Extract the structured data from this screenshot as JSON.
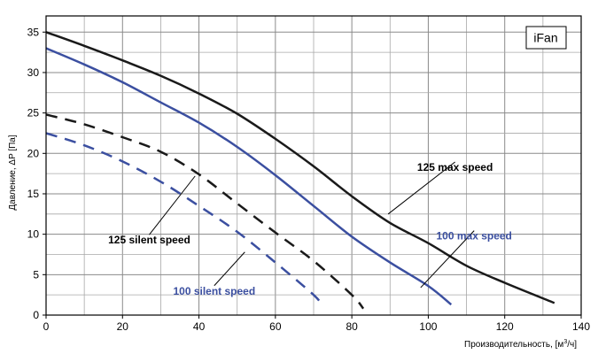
{
  "chart_data": {
    "type": "line",
    "xlabel_main": "Производительность, [м",
    "xlabel_sup": "3",
    "xlabel_end": "/ч]",
    "ylabel": "Давление, ΔP [Па]",
    "xlim": [
      0,
      140
    ],
    "ylim": [
      0,
      37
    ],
    "x_ticks": [
      0,
      20,
      40,
      60,
      80,
      100,
      120,
      140
    ],
    "y_ticks": [
      0,
      5,
      10,
      15,
      20,
      25,
      30,
      35
    ],
    "x_grid_step": 10,
    "y_grid_step": 2.5,
    "grid": true,
    "brand_label": "iFan",
    "series": [
      {
        "name": "125 max speed",
        "color": "#1a1a1a",
        "dash": "solid",
        "points": [
          [
            0,
            35
          ],
          [
            10,
            33.3
          ],
          [
            20,
            31.5
          ],
          [
            30,
            29.6
          ],
          [
            40,
            27.4
          ],
          [
            50,
            24.9
          ],
          [
            60,
            21.8
          ],
          [
            70,
            18.4
          ],
          [
            80,
            14.7
          ],
          [
            90,
            11.4
          ],
          [
            100,
            8.9
          ],
          [
            110,
            6.1
          ],
          [
            120,
            4.0
          ],
          [
            133,
            1.5
          ]
        ]
      },
      {
        "name": "100 max speed",
        "color": "#3b4fa0",
        "dash": "solid",
        "points": [
          [
            0,
            33
          ],
          [
            10,
            31
          ],
          [
            20,
            28.8
          ],
          [
            30,
            26.3
          ],
          [
            40,
            23.8
          ],
          [
            50,
            20.8
          ],
          [
            60,
            17.3
          ],
          [
            70,
            13.5
          ],
          [
            80,
            9.7
          ],
          [
            90,
            6.5
          ],
          [
            100,
            3.6
          ],
          [
            106,
            1.3
          ]
        ]
      },
      {
        "name": "125 silent speed",
        "color": "#1a1a1a",
        "dash": "dashed",
        "points": [
          [
            0,
            24.8
          ],
          [
            10,
            23.6
          ],
          [
            20,
            22
          ],
          [
            30,
            20.2
          ],
          [
            40,
            17.4
          ],
          [
            50,
            13.8
          ],
          [
            60,
            10.2
          ],
          [
            70,
            6.7
          ],
          [
            80,
            2.5
          ],
          [
            83,
            0.8
          ]
        ]
      },
      {
        "name": "100 silent speed",
        "color": "#3b4fa0",
        "dash": "dashed",
        "points": [
          [
            0,
            22.5
          ],
          [
            10,
            21
          ],
          [
            20,
            19
          ],
          [
            30,
            16.5
          ],
          [
            40,
            13.5
          ],
          [
            50,
            10.3
          ],
          [
            60,
            6.5
          ],
          [
            70,
            2.5
          ],
          [
            72,
            1.3
          ]
        ]
      }
    ],
    "annotations": [
      {
        "text": "125 max speed",
        "color": "#000000",
        "anchor_data": [
          89.5,
          12.5
        ],
        "label_data": [
          107,
          18.5
        ]
      },
      {
        "text": "100 max speed",
        "color": "#3b4fa0",
        "anchor_data": [
          98,
          3.4
        ],
        "label_data": [
          112,
          10
        ]
      },
      {
        "text": "125 silent speed",
        "color": "#000000",
        "anchor_data": [
          39,
          17.2
        ],
        "label_data": [
          27,
          9.5
        ]
      },
      {
        "text": "100 silent speed",
        "color": "#3b4fa0",
        "anchor_data": [
          52,
          7.8
        ],
        "label_data": [
          44,
          3.2
        ]
      }
    ]
  }
}
